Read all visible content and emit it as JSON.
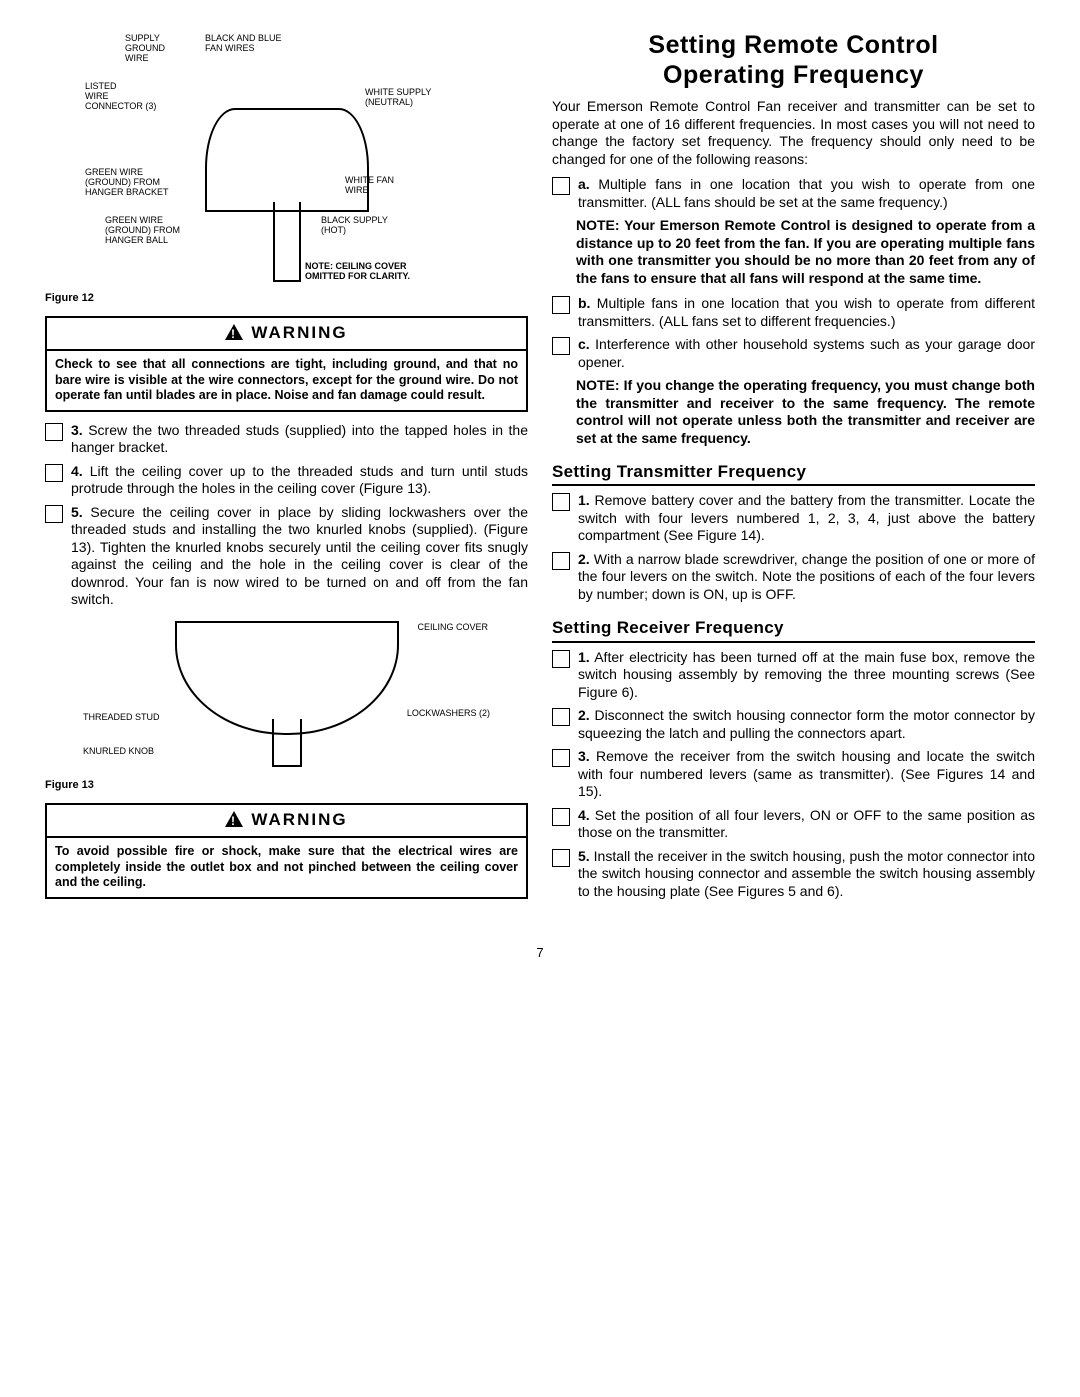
{
  "page_number": "7",
  "left": {
    "figure12": {
      "caption": "Figure 12",
      "labels": {
        "supply_ground_wire": "SUPPLY\nGROUND\nWIRE",
        "black_blue_fan_wires": "BLACK AND BLUE\nFAN WIRES",
        "listed_wire_connector": "LISTED\nWIRE\nCONNECTOR (3)",
        "white_supply_neutral": "WHITE SUPPLY\n(NEUTRAL)",
        "green_wire_bracket": "GREEN WIRE\n(GROUND) FROM\nHANGER BRACKET",
        "white_fan_wire": "WHITE FAN\nWIRE",
        "green_wire_ball": "GREEN WIRE\n(GROUND) FROM\nHANGER BALL",
        "black_supply_hot": "BLACK SUPPLY\n(HOT)",
        "note": "NOTE: CEILING COVER\nOMITTED FOR CLARITY."
      }
    },
    "warning1": {
      "heading": "WARNING",
      "body": "Check to see that all connections are tight, including ground, and that no bare wire is visible at the wire connectors, except for the ground wire. Do not operate fan until blades are in place. Noise and fan damage could result."
    },
    "steps1": [
      {
        "num": "3.",
        "text": "Screw the two threaded studs (supplied) into the tapped holes in the hanger bracket."
      },
      {
        "num": "4.",
        "text": "Lift the ceiling cover up to the threaded studs and turn until studs protrude through the holes in the ceiling cover (Figure 13)."
      },
      {
        "num": "5.",
        "text": "Secure the ceiling cover in place by sliding lockwashers over the threaded studs and installing the two knurled knobs (supplied). (Figure 13). Tighten the knurled knobs securely until the ceiling cover fits snugly against the ceiling and the hole in the ceiling cover is clear of the downrod. Your fan is now wired to be turned on and off from the fan switch."
      }
    ],
    "figure13": {
      "caption": "Figure 13",
      "labels": {
        "ceiling_cover": "CEILING COVER",
        "threaded_stud": "THREADED STUD",
        "lockwashers": "LOCKWASHERS (2)",
        "knurled_knob": "KNURLED KNOB"
      }
    },
    "warning2": {
      "heading": "WARNING",
      "body": "To avoid possible fire or shock, make sure that the electrical wires are completely inside the outlet box and not pinched between the ceiling cover and the ceiling."
    }
  },
  "right": {
    "title_l1": "Setting Remote Control",
    "title_l2": "Operating Frequency",
    "intro": "Your Emerson Remote Control Fan receiver and transmitter can be set to operate at one of 16 different frequencies. In most cases you will not need to change the factory set frequency. The frequency should only need to be changed for one of the following reasons:",
    "reasons": [
      {
        "num": "a.",
        "text": "Multiple fans in one location that you wish to operate from one transmitter. (ALL fans should be set at the same frequency.)"
      },
      {
        "note": "NOTE: Your Emerson Remote Control is designed to operate from a distance up to 20 feet from the fan. If you are operating multiple fans with one transmitter you should be no more than 20 feet from any of the fans to ensure that all fans will respond at the same time."
      },
      {
        "num": "b.",
        "text": "Multiple fans in one location that you wish to operate from different transmitters. (ALL fans set to different frequencies.)"
      },
      {
        "num": "c.",
        "text": "Interference with other household systems such as your garage door opener."
      },
      {
        "note": "NOTE: If you change the operating frequency, you must change both the transmitter and receiver to the same frequency. The remote control will not operate unless both the transmitter and receiver are set at the same frequency."
      }
    ],
    "transmitter": {
      "heading": "Setting Transmitter Frequency",
      "steps": [
        {
          "num": "1.",
          "text": "Remove battery cover and the battery from the transmitter. Locate the switch with four levers numbered 1, 2, 3, 4, just above the battery compartment (See Figure 14)."
        },
        {
          "num": "2.",
          "text": "With a narrow blade screwdriver, change the position of one or more of the four levers on the switch. Note the positions of each of the four levers by number; down is ON, up is OFF."
        }
      ]
    },
    "receiver": {
      "heading": "Setting Receiver Frequency",
      "steps": [
        {
          "num": "1.",
          "text": "After electricity has been turned off at the main fuse box, remove the switch housing assembly by removing the three mounting screws (See Figure 6)."
        },
        {
          "num": "2.",
          "text": "Disconnect the switch housing connector form the motor connector by squeezing the latch and pulling the connectors apart."
        },
        {
          "num": "3.",
          "text": "Remove the receiver from the switch housing and locate the switch with four numbered levers (same as transmitter). (See Figures 14 and 15)."
        },
        {
          "num": "4.",
          "text": "Set the position of all four levers, ON or OFF to the same position as those on the transmitter."
        },
        {
          "num": "5.",
          "text": "Install the receiver in the switch housing, push the motor connector into the switch housing connector and assemble the switch housing assembly to the housing plate (See Figures 5 and 6)."
        }
      ]
    }
  }
}
